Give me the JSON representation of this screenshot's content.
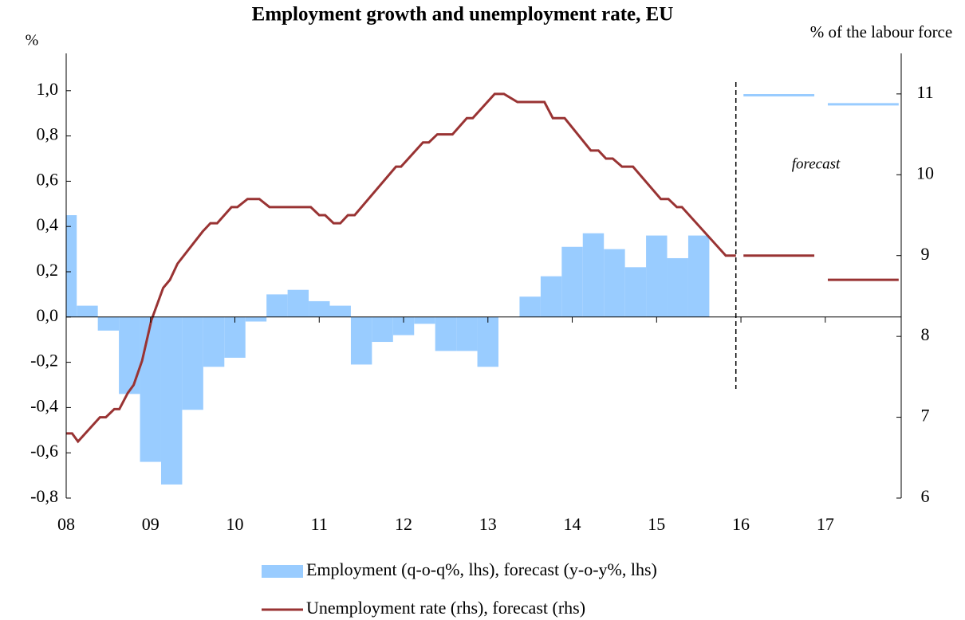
{
  "chart_data": {
    "type": "bar-line",
    "title": "Employment growth and unemployment rate, EU",
    "y_label": "%",
    "y2_label": "% of the labour force",
    "annotation": "forecast",
    "xlim": [
      2008,
      2017.9
    ],
    "xticks": [
      {
        "value": 2008,
        "label": "08"
      },
      {
        "value": 2009,
        "label": "09"
      },
      {
        "value": 2010,
        "label": "10"
      },
      {
        "value": 2011,
        "label": "11"
      },
      {
        "value": 2012,
        "label": "12"
      },
      {
        "value": 2013,
        "label": "13"
      },
      {
        "value": 2014,
        "label": "14"
      },
      {
        "value": 2015,
        "label": "15"
      },
      {
        "value": 2016,
        "label": "16"
      },
      {
        "value": 2017,
        "label": "17"
      }
    ],
    "ylim": [
      -0.8,
      1.2
    ],
    "yticks": [
      {
        "value": -0.8,
        "label": "-0,8"
      },
      {
        "value": -0.6,
        "label": "-0,6"
      },
      {
        "value": -0.4,
        "label": "-0,4"
      },
      {
        "value": -0.2,
        "label": "-0,2"
      },
      {
        "value": 0,
        "label": "0,0"
      },
      {
        "value": 0.2,
        "label": "0,2"
      },
      {
        "value": 0.4,
        "label": "0,4"
      },
      {
        "value": 0.6,
        "label": "0,6"
      },
      {
        "value": 0.8,
        "label": "0,8"
      },
      {
        "value": 1.0,
        "label": "1,0"
      }
    ],
    "y2lim": [
      6,
      11.6
    ],
    "y2ticks": [
      6,
      7,
      8,
      9,
      10,
      11
    ],
    "forecast_start": 2015.94,
    "series": [
      {
        "name": "Employment (q-o-q%, lhs), forecast (y-o-y%, lhs)",
        "type": "bar",
        "color": "#99ccff",
        "x": [
          2008,
          2008.25,
          2008.5,
          2008.75,
          2009,
          2009.25,
          2009.5,
          2009.75,
          2010,
          2010.25,
          2010.5,
          2010.75,
          2011,
          2011.25,
          2011.5,
          2011.75,
          2012,
          2012.25,
          2012.5,
          2012.75,
          2013,
          2013.25,
          2013.5,
          2013.75,
          2014,
          2014.25,
          2014.5,
          2014.75,
          2015,
          2015.25,
          2015.5
        ],
        "values": [
          0.45,
          0.05,
          -0.06,
          -0.34,
          -0.64,
          -0.74,
          -0.41,
          -0.22,
          -0.18,
          -0.02,
          0.1,
          0.12,
          0.07,
          0.05,
          -0.21,
          -0.11,
          -0.08,
          -0.03,
          -0.15,
          -0.15,
          -0.22,
          0,
          0.09,
          0.18,
          0.31,
          0.37,
          0.3,
          0.22,
          0.36,
          0.26,
          0.36
        ],
        "forecast_x": [
          2016,
          2017
        ],
        "forecast_values": [
          0.98,
          0.94
        ]
      },
      {
        "name": "Unemployment rate (rhs), forecast (rhs)",
        "type": "line",
        "axis": "y2",
        "color": "#993333",
        "x": [
          2008.0,
          2008.07,
          2008.14,
          2008.4,
          2008.47,
          2008.57,
          2008.63,
          2008.73,
          2008.8,
          2008.9,
          2009.01,
          2009.15,
          2009.23,
          2009.32,
          2009.47,
          2009.62,
          2009.71,
          2009.79,
          2009.96,
          2010.03,
          2010.15,
          2010.29,
          2010.41,
          2010.9,
          2011.0,
          2011.07,
          2011.17,
          2011.25,
          2011.34,
          2011.42,
          2011.91,
          2011.97,
          2012.23,
          2012.3,
          2012.4,
          2012.58,
          2012.75,
          2012.82,
          2013.08,
          2013.19,
          2013.35,
          2013.67,
          2013.77,
          2013.91,
          2014.22,
          2014.31,
          2014.4,
          2014.48,
          2014.59,
          2014.72,
          2015.05,
          2015.14,
          2015.24,
          2015.3,
          2015.82,
          2015.94
        ],
        "values": [
          6.8,
          6.8,
          6.7,
          7.0,
          7.0,
          7.1,
          7.1,
          7.3,
          7.4,
          7.7,
          8.2,
          8.6,
          8.7,
          8.9,
          9.1,
          9.3,
          9.4,
          9.4,
          9.6,
          9.6,
          9.7,
          9.7,
          9.6,
          9.6,
          9.5,
          9.5,
          9.4,
          9.4,
          9.5,
          9.5,
          10.1,
          10.1,
          10.4,
          10.4,
          10.5,
          10.5,
          10.7,
          10.7,
          11.0,
          11.0,
          10.9,
          10.9,
          10.7,
          10.7,
          10.3,
          10.3,
          10.2,
          10.2,
          10.1,
          10.1,
          9.7,
          9.7,
          9.6,
          9.6,
          9.0,
          9.0
        ],
        "forecast_x": [
          2016,
          2017
        ],
        "forecast_values": [
          9.0,
          8.7
        ]
      }
    ]
  }
}
